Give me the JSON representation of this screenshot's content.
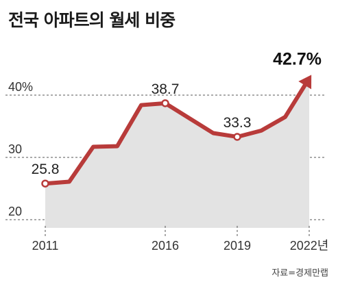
{
  "title": "전국 아파트의 월세 비중",
  "source": "자료=경제만랩",
  "colors": {
    "line": "#b83b3a",
    "fill": "#e3e3e3",
    "grid": "#555555"
  },
  "chart_data": {
    "type": "area",
    "x": [
      2011,
      2012,
      2013,
      2014,
      2015,
      2016,
      2017,
      2018,
      2019,
      2020,
      2021,
      2022
    ],
    "series": [
      {
        "values": [
          25.8,
          26.1,
          31.7,
          31.8,
          38.4,
          38.7,
          36.3,
          33.9,
          33.3,
          34.3,
          36.5,
          42.7
        ]
      }
    ],
    "ylim": [
      20,
      45
    ],
    "y_ticks": [
      "20",
      "30",
      "40%"
    ],
    "y_tick_values": [
      20,
      30,
      40
    ],
    "x_ticks": [
      "2011",
      "2016",
      "2019",
      "2022년"
    ],
    "x_tick_values": [
      2011,
      2016,
      2019,
      2022
    ],
    "data_labels": [
      {
        "x": 2011,
        "text": "25.8"
      },
      {
        "x": 2016,
        "text": "38.7"
      },
      {
        "x": 2019,
        "text": "33.3"
      },
      {
        "x": 2022,
        "text": "42.7%"
      }
    ],
    "grid": true
  }
}
